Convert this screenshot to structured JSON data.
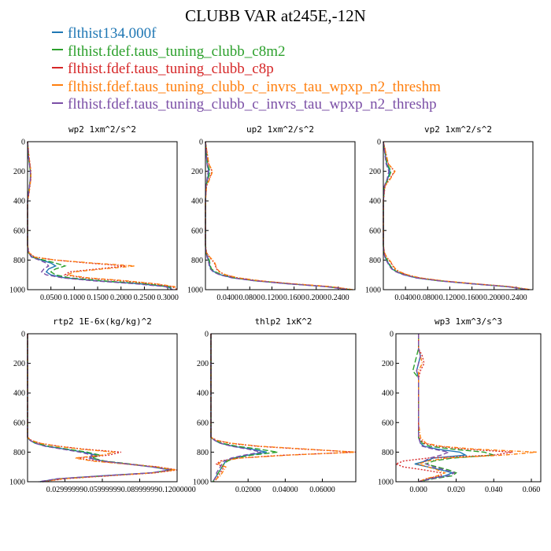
{
  "title": "CLUBB VAR at245E,-12N",
  "legend": [
    {
      "label": "flthist134.000f",
      "color": "#1f77b4"
    },
    {
      "label": "flthist.fdef.taus_tuning_clubb_c8m2",
      "color": "#2ca02c"
    },
    {
      "label": "flthist.fdef.taus_tuning_clubb_c8p",
      "color": "#d62728"
    },
    {
      "label": "flthist.fdef.taus_tuning_clubb_c_invrs_tau_wpxp_n2_threshm",
      "color": "#ff7f0e"
    },
    {
      "label": "flthist.fdef.taus_tuning_clubb_c_invrs_tau_wpxp_n2_threshp",
      "color": "#7b4fa6"
    }
  ],
  "chart_data": [
    {
      "type": "line",
      "title": "wp2  1xm^2/s^2",
      "xlim": [
        0,
        0.32
      ],
      "ylim": [
        1000,
        0
      ],
      "xticks": [
        0.05,
        0.1,
        0.15,
        0.2,
        0.25,
        0.3
      ],
      "xtick_labels": [
        "0.0500",
        "0.1000",
        "0.1500",
        "0.2000",
        "0.2500",
        "0.3000"
      ],
      "yticks": [
        0,
        200,
        400,
        600,
        800,
        1000
      ],
      "y": [
        0,
        100,
        150,
        200,
        250,
        300,
        350,
        400,
        500,
        600,
        700,
        750,
        780,
        800,
        820,
        840,
        860,
        880,
        900,
        920,
        940,
        960,
        980,
        1000
      ],
      "series": [
        {
          "values": [
            0,
            0.002,
            0.004,
            0.006,
            0.006,
            0.004,
            0.002,
            0,
            0,
            0,
            0,
            0.002,
            0.01,
            0.03,
            0.05,
            0.06,
            0.045,
            0.04,
            0.05,
            0.08,
            0.15,
            0.24,
            0.3,
            0.31
          ]
        },
        {
          "values": [
            0,
            0.002,
            0.004,
            0.006,
            0.006,
            0.004,
            0.002,
            0,
            0,
            0,
            0,
            0.002,
            0.01,
            0.035,
            0.06,
            0.08,
            0.06,
            0.05,
            0.06,
            0.09,
            0.16,
            0.25,
            0.305,
            0.31
          ]
        },
        {
          "values": [
            0,
            0.003,
            0.005,
            0.007,
            0.007,
            0.005,
            0.003,
            0,
            0,
            0,
            0,
            0.003,
            0.015,
            0.06,
            0.13,
            0.21,
            0.15,
            0.09,
            0.08,
            0.12,
            0.2,
            0.27,
            0.31,
            0.32
          ]
        },
        {
          "values": [
            0,
            0.003,
            0.005,
            0.007,
            0.007,
            0.005,
            0.003,
            0,
            0,
            0,
            0,
            0.003,
            0.015,
            0.06,
            0.14,
            0.23,
            0.16,
            0.1,
            0.085,
            0.13,
            0.21,
            0.275,
            0.315,
            0.32
          ]
        },
        {
          "values": [
            0,
            0.002,
            0.004,
            0.006,
            0.006,
            0.004,
            0.002,
            0,
            0,
            0,
            0,
            0.002,
            0.008,
            0.025,
            0.04,
            0.045,
            0.035,
            0.03,
            0.04,
            0.075,
            0.14,
            0.23,
            0.295,
            0.31
          ]
        }
      ]
    },
    {
      "type": "line",
      "title": "up2  1xm^2/s^2",
      "xlim": [
        0,
        0.27
      ],
      "ylim": [
        1000,
        0
      ],
      "xticks": [
        0.04,
        0.08,
        0.12,
        0.16,
        0.2,
        0.24
      ],
      "xtick_labels": [
        "0.0400",
        "0.0800",
        "0.1200",
        "0.1600",
        "0.2000",
        "0.2400"
      ],
      "yticks": [
        0,
        200,
        400,
        600,
        800,
        1000
      ],
      "y": [
        0,
        150,
        200,
        250,
        300,
        400,
        500,
        600,
        700,
        750,
        780,
        800,
        820,
        840,
        860,
        880,
        900,
        920,
        940,
        960,
        980,
        1000
      ],
      "series": [
        {
          "values": [
            0,
            0.003,
            0.006,
            0.004,
            0.001,
            0,
            0,
            0,
            0,
            0.001,
            0.004,
            0.006,
            0.007,
            0.008,
            0.01,
            0.016,
            0.028,
            0.05,
            0.09,
            0.15,
            0.22,
            0.26
          ]
        },
        {
          "values": [
            0,
            0.004,
            0.008,
            0.005,
            0.001,
            0,
            0,
            0,
            0,
            0.001,
            0.004,
            0.007,
            0.008,
            0.009,
            0.011,
            0.018,
            0.03,
            0.052,
            0.092,
            0.152,
            0.222,
            0.262
          ]
        },
        {
          "values": [
            0,
            0.006,
            0.012,
            0.007,
            0.002,
            0,
            0,
            0,
            0,
            0.002,
            0.007,
            0.012,
            0.016,
            0.018,
            0.02,
            0.025,
            0.036,
            0.058,
            0.097,
            0.156,
            0.226,
            0.265
          ]
        },
        {
          "values": [
            0,
            0.006,
            0.013,
            0.008,
            0.002,
            0,
            0,
            0,
            0,
            0.002,
            0.008,
            0.013,
            0.017,
            0.019,
            0.021,
            0.026,
            0.037,
            0.059,
            0.098,
            0.157,
            0.227,
            0.266
          ]
        },
        {
          "values": [
            0,
            0.003,
            0.005,
            0.003,
            0.001,
            0,
            0,
            0,
            0,
            0.001,
            0.003,
            0.005,
            0.006,
            0.007,
            0.009,
            0.014,
            0.026,
            0.048,
            0.088,
            0.148,
            0.218,
            0.258
          ]
        }
      ]
    },
    {
      "type": "line",
      "title": "vp2  1xm^2/s^2",
      "xlim": [
        0,
        0.27
      ],
      "ylim": [
        1000,
        0
      ],
      "xticks": [
        0.04,
        0.08,
        0.12,
        0.16,
        0.2,
        0.24
      ],
      "xtick_labels": [
        "0.0400",
        "0.0800",
        "0.1200",
        "0.1600",
        "0.2000",
        "0.2400"
      ],
      "yticks": [
        0,
        200,
        400,
        600,
        800,
        1000
      ],
      "y": [
        0,
        150,
        200,
        250,
        300,
        400,
        500,
        600,
        700,
        750,
        780,
        800,
        820,
        840,
        860,
        880,
        900,
        920,
        940,
        960,
        980,
        1000
      ],
      "series": [
        {
          "values": [
            0,
            0.006,
            0.012,
            0.008,
            0.002,
            0,
            0,
            0,
            0,
            0.001,
            0.003,
            0.006,
            0.009,
            0.012,
            0.016,
            0.024,
            0.038,
            0.06,
            0.1,
            0.16,
            0.225,
            0.262
          ]
        },
        {
          "values": [
            0,
            0.007,
            0.014,
            0.009,
            0.002,
            0,
            0,
            0,
            0,
            0.001,
            0.004,
            0.007,
            0.01,
            0.013,
            0.017,
            0.025,
            0.039,
            0.061,
            0.101,
            0.161,
            0.226,
            0.263
          ]
        },
        {
          "values": [
            0,
            0.009,
            0.02,
            0.012,
            0.003,
            0,
            0,
            0,
            0,
            0.002,
            0.006,
            0.01,
            0.014,
            0.017,
            0.021,
            0.029,
            0.043,
            0.065,
            0.105,
            0.164,
            0.228,
            0.265
          ]
        },
        {
          "values": [
            0,
            0.009,
            0.021,
            0.013,
            0.003,
            0,
            0,
            0,
            0,
            0.002,
            0.006,
            0.011,
            0.015,
            0.018,
            0.022,
            0.03,
            0.044,
            0.066,
            0.106,
            0.165,
            0.229,
            0.266
          ]
        },
        {
          "values": [
            0,
            0.005,
            0.01,
            0.007,
            0.002,
            0,
            0,
            0,
            0,
            0.001,
            0.003,
            0.005,
            0.008,
            0.011,
            0.015,
            0.023,
            0.037,
            0.059,
            0.099,
            0.159,
            0.224,
            0.261
          ]
        }
      ]
    },
    {
      "type": "line",
      "title": "rtp2  1E-6x(kg/kg)^2",
      "xlim": [
        0,
        0.12
      ],
      "ylim": [
        1000,
        0
      ],
      "xticks": [
        0.03,
        0.06,
        0.09,
        0.12
      ],
      "xtick_labels": [
        "0.02999999",
        "0.05999999",
        "0.08999999",
        "0.12000000"
      ],
      "yticks": [
        0,
        200,
        400,
        600,
        800,
        1000
      ],
      "y": [
        0,
        500,
        650,
        700,
        720,
        740,
        760,
        780,
        800,
        820,
        840,
        860,
        880,
        900,
        920,
        940,
        960,
        980,
        1000
      ],
      "series": [
        {
          "values": [
            0,
            0,
            0,
            0,
            0.002,
            0.006,
            0.015,
            0.03,
            0.045,
            0.055,
            0.05,
            0.06,
            0.08,
            0.1,
            0.115,
            0.1,
            0.06,
            0.025,
            0.01
          ]
        },
        {
          "values": [
            0,
            0,
            0,
            0,
            0.002,
            0.007,
            0.017,
            0.032,
            0.048,
            0.058,
            0.052,
            0.062,
            0.082,
            0.102,
            0.116,
            0.1,
            0.062,
            0.027,
            0.012
          ]
        },
        {
          "values": [
            0,
            0,
            0,
            0,
            0.003,
            0.01,
            0.025,
            0.045,
            0.075,
            0.065,
            0.04,
            0.055,
            0.08,
            0.105,
            0.12,
            0.102,
            0.065,
            0.03,
            0.012
          ]
        },
        {
          "values": [
            0,
            0,
            0,
            0,
            0.003,
            0.01,
            0.024,
            0.043,
            0.07,
            0.06,
            0.038,
            0.052,
            0.078,
            0.104,
            0.119,
            0.101,
            0.064,
            0.028,
            0.011
          ]
        },
        {
          "values": [
            0,
            0,
            0,
            0,
            0.002,
            0.006,
            0.014,
            0.028,
            0.042,
            0.052,
            0.049,
            0.06,
            0.08,
            0.1,
            0.114,
            0.099,
            0.06,
            0.024,
            0.009
          ]
        }
      ]
    },
    {
      "type": "line",
      "title": "thlp2  1xK^2",
      "xlim": [
        0,
        0.078
      ],
      "ylim": [
        1000,
        0
      ],
      "xticks": [
        0.02,
        0.04,
        0.06
      ],
      "xtick_labels": [
        "0.02000",
        "0.04000",
        "0.06000"
      ],
      "yticks": [
        0,
        200,
        400,
        600,
        800,
        1000
      ],
      "y": [
        0,
        500,
        650,
        700,
        720,
        740,
        760,
        780,
        800,
        820,
        840,
        860,
        880,
        900,
        920,
        940,
        960,
        980,
        1000
      ],
      "series": [
        {
          "values": [
            0,
            0,
            0,
            0,
            0.002,
            0.005,
            0.012,
            0.022,
            0.03,
            0.02,
            0.012,
            0.008,
            0.007,
            0.006,
            0.005,
            0.004,
            0.003,
            0.002,
            0.001
          ]
        },
        {
          "values": [
            0,
            0,
            0,
            0,
            0.002,
            0.006,
            0.014,
            0.026,
            0.036,
            0.022,
            0.013,
            0.009,
            0.007,
            0.006,
            0.005,
            0.004,
            0.003,
            0.002,
            0.001
          ]
        },
        {
          "values": [
            0,
            0,
            0,
            0,
            0.003,
            0.01,
            0.025,
            0.05,
            0.078,
            0.04,
            0.015,
            0.005,
            0.003,
            0.007,
            0.006,
            0.005,
            0.004,
            0.003,
            0.002
          ]
        },
        {
          "values": [
            0,
            0,
            0,
            0,
            0.003,
            0.011,
            0.026,
            0.052,
            0.078,
            0.042,
            0.016,
            0.006,
            0.004,
            0.008,
            0.007,
            0.006,
            0.005,
            0.003,
            0.002
          ]
        },
        {
          "values": [
            0,
            0,
            0,
            0,
            0.002,
            0.005,
            0.011,
            0.02,
            0.027,
            0.018,
            0.011,
            0.007,
            0.006,
            0.005,
            0.004,
            0.003,
            0.003,
            0.002,
            0.001
          ]
        }
      ]
    },
    {
      "type": "line",
      "title": "wp3  1xm^3/s^3",
      "xlim": [
        -0.012,
        0.065
      ],
      "ylim": [
        1000,
        0
      ],
      "xticks": [
        0,
        0.02,
        0.04,
        0.06
      ],
      "xtick_labels": [
        "0.000",
        "0.020",
        "0.040",
        "0.060"
      ],
      "yticks": [
        0,
        200,
        400,
        600,
        800,
        1000
      ],
      "y": [
        0,
        100,
        150,
        200,
        250,
        300,
        400,
        500,
        600,
        700,
        740,
        760,
        780,
        800,
        820,
        840,
        860,
        880,
        900,
        920,
        940,
        960,
        980,
        1000
      ],
      "series": [
        {
          "values": [
            0,
            0,
            0.001,
            0,
            -0.001,
            0,
            0,
            0,
            0,
            0,
            0.001,
            0.003,
            0.01,
            0.022,
            0.025,
            0.008,
            0.004,
            -0.002,
            0.005,
            0.012,
            0.018,
            0.014,
            0.006,
            0
          ]
        },
        {
          "values": [
            0,
            0,
            -0.001,
            -0.002,
            -0.003,
            0,
            0,
            0,
            0,
            0,
            0.002,
            0.006,
            0.018,
            0.035,
            0.04,
            0.018,
            0.008,
            0.004,
            0.01,
            0.016,
            0.02,
            0.018,
            0.008,
            0
          ]
        },
        {
          "values": [
            0,
            0,
            0.002,
            0.003,
            0.001,
            0,
            0,
            0,
            0,
            0,
            0.003,
            0.01,
            0.025,
            0.05,
            0.04,
            0.005,
            -0.008,
            -0.012,
            -0.008,
            0.003,
            0.012,
            0.012,
            0.004,
            0
          ]
        },
        {
          "values": [
            0,
            0,
            0.001,
            0.002,
            0,
            0,
            0,
            0,
            0,
            0.001,
            0.004,
            0.012,
            0.03,
            0.063,
            0.045,
            0.015,
            0.005,
            0.0,
            0.005,
            0.01,
            0.014,
            0.01,
            0.004,
            0
          ]
        },
        {
          "values": [
            0,
            0,
            0.001,
            0,
            -0.001,
            0,
            0,
            0,
            0,
            0,
            0.001,
            0.002,
            0.008,
            0.016,
            0.012,
            0.006,
            0.003,
            0.004,
            0.008,
            0.014,
            0.019,
            0.016,
            0.007,
            0
          ]
        }
      ]
    }
  ]
}
